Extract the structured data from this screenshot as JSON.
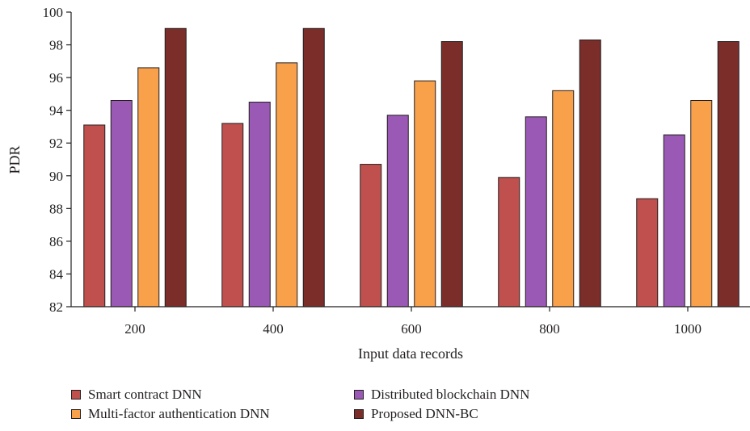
{
  "chart_data": {
    "type": "bar",
    "categories": [
      "200",
      "400",
      "600",
      "800",
      "1000"
    ],
    "series": [
      {
        "name": "Smart contract DNN",
        "color": "#c0504d",
        "values": [
          93.1,
          93.2,
          90.7,
          89.9,
          88.6
        ]
      },
      {
        "name": "Distributed blockchain DNN",
        "color": "#9b59b6",
        "values": [
          94.6,
          94.5,
          93.7,
          93.6,
          92.5
        ]
      },
      {
        "name": "Multi-factor authentication DNN",
        "color": "#f9a04a",
        "values": [
          96.6,
          96.9,
          95.8,
          95.2,
          94.6
        ]
      },
      {
        "name": "Proposed DNN-BC",
        "color": "#7b2d2a",
        "values": [
          99.0,
          99.0,
          98.2,
          98.3,
          98.2
        ]
      }
    ],
    "title": "",
    "xlabel": "Input data records",
    "ylabel": "PDR",
    "ylim": [
      82,
      100
    ],
    "yticks": [
      "82",
      "84",
      "86",
      "88",
      "90",
      "92",
      "94",
      "96",
      "98",
      "100"
    ],
    "grid": false,
    "legend_position": "bottom"
  }
}
